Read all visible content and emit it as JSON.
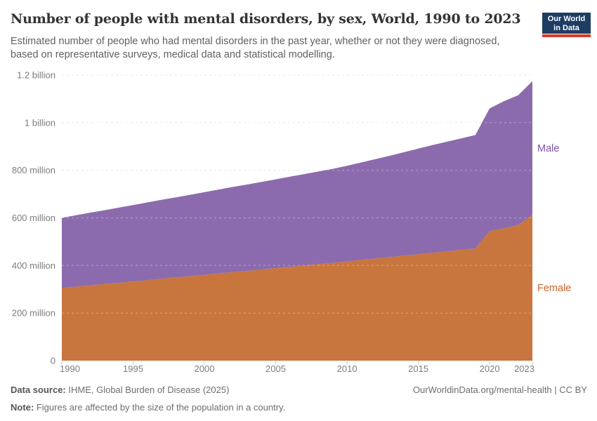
{
  "header": {
    "title": "Number of people with mental disorders, by sex, World, 1990 to 2023",
    "subtitle": "Estimated number of people who had mental disorders in the past year, whether or not they were diagnosed, based on representative surveys, medical data and statistical modelling.",
    "logo_line1": "Our World",
    "logo_line2": "in Data"
  },
  "chart_data": {
    "type": "area",
    "stacked": true,
    "title": "Number of people with mental disorders, by sex, World, 1990 to 2023",
    "unit": "people (millions)",
    "xlim": [
      1990,
      2023
    ],
    "ylim": [
      0,
      1200
    ],
    "grid": "dashed-horizontal",
    "legend": "labels-at-right-edge",
    "x": [
      1990,
      1991,
      1992,
      1993,
      1994,
      1995,
      1996,
      1997,
      1998,
      1999,
      2000,
      2001,
      2002,
      2003,
      2004,
      2005,
      2006,
      2007,
      2008,
      2009,
      2010,
      2011,
      2012,
      2013,
      2014,
      2015,
      2016,
      2017,
      2018,
      2019,
      2020,
      2021,
      2022,
      2023
    ],
    "series": [
      {
        "name": "Female",
        "fill": "#C9753E",
        "label_color": "#C8632A",
        "values": [
          305,
          311,
          316,
          322,
          327,
          333,
          338,
          344,
          350,
          355,
          361,
          366,
          372,
          377,
          383,
          389,
          394,
          400,
          406,
          411,
          417,
          423,
          429,
          435,
          441,
          447,
          453,
          459,
          465,
          471,
          545,
          556,
          570,
          612
        ]
      },
      {
        "name": "Male",
        "fill": "#8B6BAD",
        "label_color": "#7A51A9",
        "values": [
          295,
          300,
          306,
          310,
          316,
          321,
          327,
          332,
          336,
          342,
          347,
          353,
          358,
          363,
          368,
          373,
          379,
          384,
          389,
          395,
          402,
          410,
          418,
          426,
          435,
          444,
          453,
          461,
          469,
          477,
          515,
          534,
          545,
          562
        ]
      }
    ],
    "y_ticks": [
      {
        "value": 0,
        "label": "0"
      },
      {
        "value": 200,
        "label": "200 million"
      },
      {
        "value": 400,
        "label": "400 million"
      },
      {
        "value": 600,
        "label": "600 million"
      },
      {
        "value": 800,
        "label": "800 million"
      },
      {
        "value": 1000,
        "label": "1 billion"
      },
      {
        "value": 1200,
        "label": "1.2 billion"
      }
    ],
    "x_ticks": [
      1990,
      1995,
      2000,
      2005,
      2010,
      2015,
      2020,
      2023
    ]
  },
  "footer": {
    "source_label": "Data source:",
    "source_text": "IHME, Global Burden of Disease (2025)",
    "note_label": "Note:",
    "note_text": "Figures are affected by the size of the population in a country.",
    "link": "OurWorldinData.org/mental-health | CC BY"
  },
  "colors": {
    "logo_bg": "#1d3d63",
    "logo_bar": "#d63a2e",
    "gridline": "#dddddd",
    "axis_text": "#7d7d7d",
    "tick_mark": "#c4c4c4"
  }
}
